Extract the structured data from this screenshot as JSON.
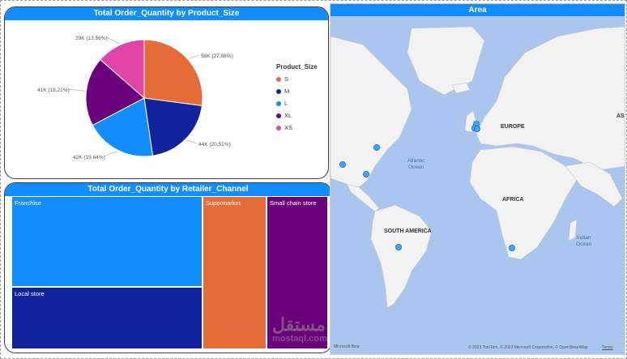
{
  "pie": {
    "title": "Total Order_Quantity by Product_Size",
    "legend_title": "Product_Size",
    "legend": [
      {
        "label": "S",
        "color": "#e66c37"
      },
      {
        "label": "M",
        "color": "#12239e"
      },
      {
        "label": "L",
        "color": "#118dff"
      },
      {
        "label": "XL",
        "color": "#6b007b"
      },
      {
        "label": "XS",
        "color": "#e044a7"
      }
    ]
  },
  "treemap": {
    "title": "Total Order_Quantity by Retailer_Channel",
    "cells": [
      {
        "label": "Franchise",
        "color": "#118dff"
      },
      {
        "label": "Local store",
        "color": "#12239e"
      },
      {
        "label": "Supermarket",
        "color": "#e66c37"
      },
      {
        "label": "Small chain store",
        "color": "#6b007b"
      }
    ]
  },
  "map": {
    "title": "Area",
    "labels": {
      "europe": "EUROPE",
      "africa": "AFRICA",
      "south_america": "SOUTH AMERICA",
      "asia_partial": "AS",
      "atlantic": "Atlantic",
      "ocean1": "Ocean",
      "indian": "Indian",
      "ocean2": "Ocean"
    },
    "attribution": "© 2023 TomTom, © 2023 Microsoft Corporation, © OpenStreetMap",
    "terms": "Terms",
    "bing": "Microsoft Bing"
  },
  "watermark": {
    "arabic": "مستقل",
    "latin": "mostaql.com"
  },
  "chart_data": [
    {
      "type": "pie",
      "title": "Total Order_Quantity by Product_Size",
      "legend_title": "Product_Size",
      "categories": [
        "S",
        "M",
        "L",
        "XL",
        "XS"
      ],
      "values": [
        58,
        44,
        42,
        41,
        29
      ],
      "labels": [
        "58K (27.08%)",
        "44K (20.51%)",
        "42K (19.64%)",
        "41K (19.21%)",
        "29K (13.56%)"
      ],
      "colors": [
        "#e66c37",
        "#12239e",
        "#118dff",
        "#6b007b",
        "#e044a7"
      ]
    },
    {
      "type": "treemap",
      "title": "Total Order_Quantity by Retailer_Channel",
      "categories": [
        "Franchise",
        "Local store",
        "Supermarket",
        "Small chain store"
      ]
    }
  ]
}
